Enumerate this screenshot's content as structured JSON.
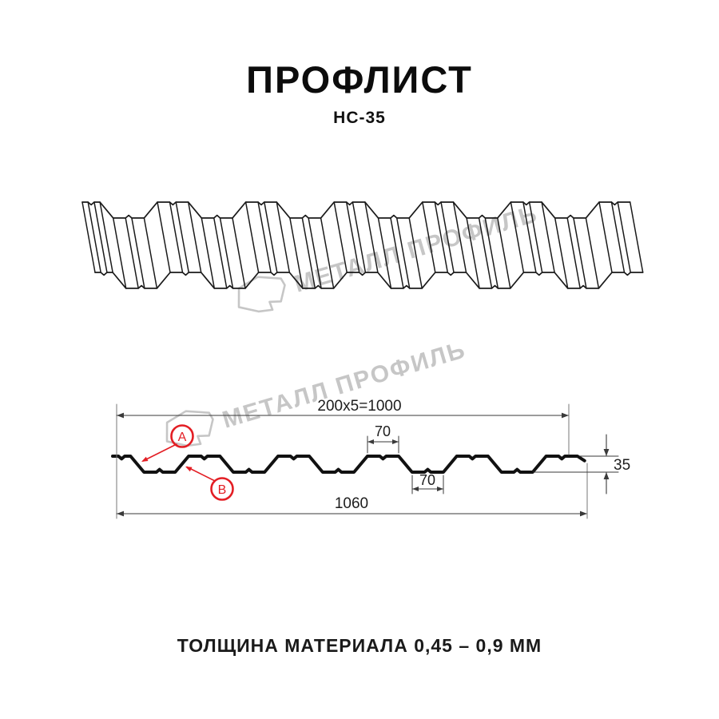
{
  "page": {
    "background": "#ffffff"
  },
  "header": {
    "title": "ПРОФЛИСТ",
    "subtitle": "НС-35"
  },
  "drawing": {
    "watermark": {
      "text": "МЕТАЛЛ ПРОФИЛЬ",
      "color": "#c6c6c6"
    },
    "callouts": {
      "a": "A",
      "b": "B"
    },
    "dimensions": {
      "top_width": "200x5=1000",
      "crest_width": "70",
      "valley_width": "70",
      "height": "35",
      "total_width": "1060"
    },
    "colors": {
      "outline": "#1a1a1a",
      "section": "#111111",
      "dimension": "#3a3a3a",
      "extension": "#777777",
      "accent_red": "#e31e24"
    }
  },
  "footer": {
    "note": "ТОЛЩИНА МАТЕРИАЛА 0,45 – 0,9 ММ"
  }
}
